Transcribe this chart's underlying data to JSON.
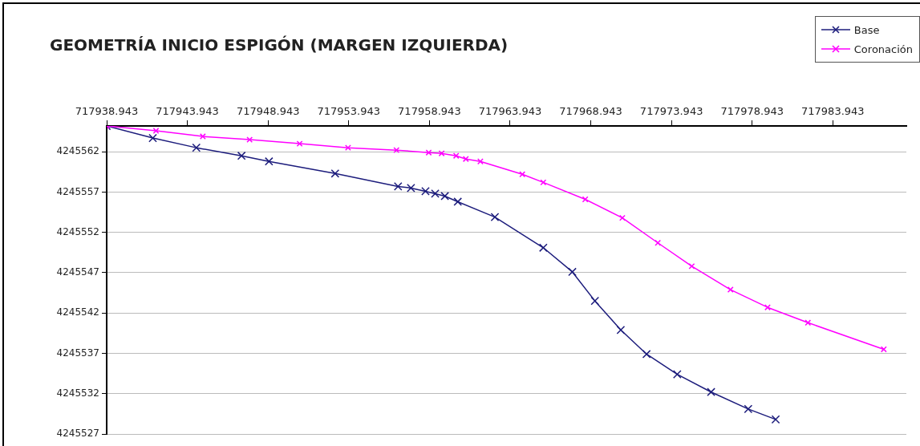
{
  "chart_data": {
    "type": "line",
    "title": "GEOMETRÍA INICIO ESPIGÓN (MARGEN IZQUIERDA)",
    "xlim": [
      717938.943,
      717988.5
    ],
    "xticks": [
      717938.943,
      717943.943,
      717948.943,
      717953.943,
      717958.943,
      717963.943,
      717968.943,
      717973.943,
      717978.943,
      717983.943
    ],
    "ylim": [
      4245527,
      4245565.2
    ],
    "yticks": [
      4245527,
      4245532,
      4245537,
      4245542,
      4245547,
      4245552,
      4245557,
      4245562
    ],
    "grid": "y",
    "legend": "top right",
    "marker": "cross",
    "line_style": "solid",
    "series": [
      {
        "name": "Base",
        "color": "#1c1c7c",
        "x": [
          717938.943,
          717941.8,
          717944.5,
          717947.3,
          717949.0,
          717953.1,
          717957.0,
          717957.8,
          717958.7,
          717959.3,
          717959.9,
          717960.7,
          717963.0,
          717966.0,
          717967.8,
          717969.2,
          717970.8,
          717972.4,
          717974.3,
          717976.4,
          717978.7,
          717980.4
        ],
        "values": [
          4245565.2,
          4245563.7,
          4245562.5,
          4245561.5,
          4245560.8,
          4245559.3,
          4245557.7,
          4245557.5,
          4245557.1,
          4245556.8,
          4245556.5,
          4245555.8,
          4245553.9,
          4245550.1,
          4245547.1,
          4245543.5,
          4245539.9,
          4245536.9,
          4245534.4,
          4245532.2,
          4245530.1,
          4245528.8
        ]
      },
      {
        "name": "Coronación",
        "color": "#ff00ff",
        "x": [
          717938.943,
          717942.0,
          717944.9,
          717947.8,
          717950.9,
          717953.9,
          717956.9,
          717958.9,
          717959.7,
          717960.6,
          717961.2,
          717962.1,
          717964.7,
          717966.0,
          717968.6,
          717970.9,
          717973.1,
          717975.2,
          717977.6,
          717979.9,
          717982.4,
          717987.1
        ],
        "values": [
          4245565.2,
          4245564.6,
          4245563.9,
          4245563.5,
          4245563.0,
          4245562.5,
          4245562.2,
          4245561.9,
          4245561.8,
          4245561.5,
          4245561.1,
          4245560.8,
          4245559.2,
          4245558.2,
          4245556.1,
          4245553.8,
          4245550.7,
          4245547.8,
          4245544.9,
          4245542.7,
          4245540.8,
          4245537.5
        ]
      }
    ]
  }
}
